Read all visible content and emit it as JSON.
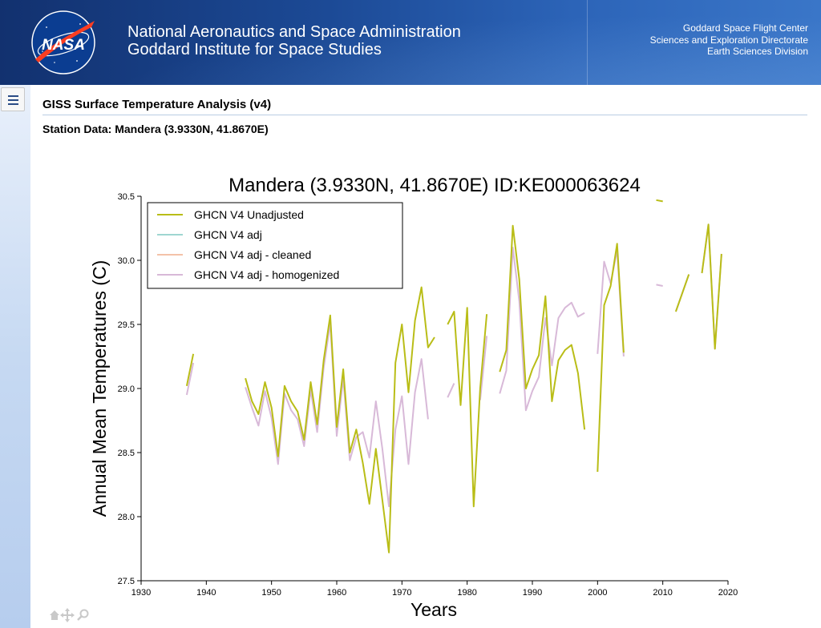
{
  "header": {
    "logo_text": "NASA",
    "agency_line1": "National Aeronautics and Space Administration",
    "agency_line2": "Goddard Institute for Space Studies",
    "right_line1": "Goddard Space Flight Center",
    "right_line2": "Sciences and Exploration Directorate",
    "right_line3": "Earth Sciences Division"
  },
  "page": {
    "title": "GISS Surface Temperature Analysis (v4)",
    "station_title": "Station Data: Mandera (3.9330N, 41.8670E)"
  },
  "colors": {
    "unadjusted": "#b9bd17",
    "adj": "#9fd6d1",
    "cleaned": "#f4c2a8",
    "homogenized": "#d8b9d8"
  },
  "chart_data": {
    "type": "line",
    "title": "Mandera (3.9330N, 41.8670E) ID:KE000063624",
    "xlabel": "Years",
    "ylabel": "Annual Mean Temperatures (C)",
    "xlim": [
      1930,
      2020
    ],
    "ylim": [
      27.5,
      30.5
    ],
    "xticks": [
      1930,
      1940,
      1950,
      1960,
      1970,
      1980,
      1990,
      2000,
      2010,
      2020
    ],
    "yticks": [
      27.5,
      28.0,
      28.5,
      29.0,
      29.5,
      30.0,
      30.5
    ],
    "ytick_labels": [
      "27.5",
      "28.0",
      "28.5",
      "29.0",
      "29.5",
      "30.0",
      "30.5"
    ],
    "legend_position": "top-left",
    "series": [
      {
        "name": "GHCN V4 Unadjusted",
        "color_key": "unadjusted",
        "segments": [
          [
            [
              1937,
              29.02
            ],
            [
              1938,
              29.27
            ]
          ],
          [
            [
              1946,
              29.08
            ],
            [
              1947,
              28.9
            ],
            [
              1948,
              28.8
            ],
            [
              1949,
              29.05
            ],
            [
              1950,
              28.85
            ],
            [
              1951,
              28.47
            ],
            [
              1952,
              29.02
            ],
            [
              1953,
              28.9
            ],
            [
              1954,
              28.82
            ],
            [
              1955,
              28.6
            ],
            [
              1956,
              29.05
            ],
            [
              1957,
              28.72
            ],
            [
              1958,
              29.22
            ],
            [
              1959,
              29.57
            ],
            [
              1960,
              28.7
            ],
            [
              1961,
              29.15
            ],
            [
              1962,
              28.5
            ],
            [
              1963,
              28.68
            ],
            [
              1964,
              28.42
            ],
            [
              1965,
              28.1
            ],
            [
              1966,
              28.53
            ],
            [
              1967,
              28.13
            ],
            [
              1968,
              27.72
            ],
            [
              1969,
              29.2
            ],
            [
              1970,
              29.5
            ],
            [
              1971,
              28.97
            ],
            [
              1972,
              29.53
            ],
            [
              1973,
              29.79
            ],
            [
              1974,
              29.32
            ],
            [
              1975,
              29.4
            ]
          ],
          [
            [
              1977,
              29.5
            ],
            [
              1978,
              29.6
            ],
            [
              1979,
              28.87
            ],
            [
              1980,
              29.63
            ],
            [
              1981,
              28.08
            ],
            [
              1982,
              29.0
            ],
            [
              1983,
              29.58
            ]
          ],
          [
            [
              1985,
              29.13
            ],
            [
              1986,
              29.3
            ],
            [
              1987,
              30.27
            ],
            [
              1988,
              29.85
            ],
            [
              1989,
              29.0
            ],
            [
              1990,
              29.15
            ],
            [
              1991,
              29.26
            ],
            [
              1992,
              29.72
            ],
            [
              1993,
              28.9
            ],
            [
              1994,
              29.22
            ],
            [
              1995,
              29.3
            ],
            [
              1996,
              29.34
            ],
            [
              1997,
              29.12
            ],
            [
              1998,
              28.68
            ]
          ],
          [
            [
              2000,
              28.35
            ],
            [
              2001,
              29.65
            ],
            [
              2002,
              29.8
            ],
            [
              2003,
              30.13
            ],
            [
              2004,
              29.28
            ]
          ],
          [
            [
              2009,
              30.47
            ],
            [
              2010,
              30.46
            ]
          ],
          [
            [
              2012,
              29.6
            ],
            [
              2014,
              29.89
            ]
          ],
          [
            [
              2016,
              29.9
            ],
            [
              2017,
              30.28
            ],
            [
              2018,
              29.31
            ],
            [
              2019,
              30.05
            ]
          ]
        ]
      },
      {
        "name": "GHCN V4 adj",
        "color_key": "adj",
        "segments": []
      },
      {
        "name": "GHCN V4 adj - cleaned",
        "color_key": "cleaned",
        "segments": []
      },
      {
        "name": "GHCN V4 adj - homogenized",
        "color_key": "homogenized",
        "segments": [
          [
            [
              1937,
              28.95
            ],
            [
              1938,
              29.2
            ]
          ],
          [
            [
              1946,
              29.01
            ],
            [
              1947,
              28.85
            ],
            [
              1948,
              28.71
            ],
            [
              1949,
              28.98
            ],
            [
              1950,
              28.77
            ],
            [
              1951,
              28.41
            ],
            [
              1952,
              28.96
            ],
            [
              1953,
              28.83
            ],
            [
              1954,
              28.76
            ],
            [
              1955,
              28.55
            ],
            [
              1956,
              28.99
            ],
            [
              1957,
              28.66
            ],
            [
              1958,
              29.16
            ],
            [
              1959,
              29.51
            ],
            [
              1960,
              28.63
            ],
            [
              1961,
              29.08
            ],
            [
              1962,
              28.44
            ],
            [
              1963,
              28.62
            ],
            [
              1964,
              28.66
            ],
            [
              1965,
              28.46
            ],
            [
              1966,
              28.9
            ],
            [
              1967,
              28.53
            ],
            [
              1968,
              28.08
            ],
            [
              1969,
              28.68
            ],
            [
              1970,
              28.94
            ],
            [
              1971,
              28.41
            ],
            [
              1972,
              28.97
            ],
            [
              1973,
              29.23
            ],
            [
              1974,
              28.76
            ]
          ],
          [
            [
              1977,
              28.93
            ],
            [
              1978,
              29.04
            ]
          ],
          [
            [
              1982,
              28.91
            ],
            [
              1983,
              29.41
            ]
          ],
          [
            [
              1985,
              28.96
            ],
            [
              1986,
              29.14
            ],
            [
              1987,
              30.1
            ],
            [
              1988,
              29.68
            ],
            [
              1989,
              28.83
            ],
            [
              1990,
              28.98
            ],
            [
              1991,
              29.09
            ],
            [
              1992,
              29.55
            ],
            [
              1993,
              29.18
            ],
            [
              1994,
              29.55
            ],
            [
              1995,
              29.63
            ],
            [
              1996,
              29.67
            ],
            [
              1997,
              29.56
            ],
            [
              1998,
              29.59
            ]
          ],
          [
            [
              2000,
              29.27
            ],
            [
              2001,
              29.99
            ],
            [
              2002,
              29.82
            ],
            [
              2003,
              30.08
            ],
            [
              2004,
              29.25
            ]
          ],
          [
            [
              2009,
              29.81
            ],
            [
              2010,
              29.8
            ]
          ],
          [
            [
              2012,
              29.6
            ],
            [
              2014,
              29.89
            ]
          ],
          [
            [
              2016,
              29.9
            ],
            [
              2017,
              30.28
            ],
            [
              2018,
              29.31
            ],
            [
              2019,
              30.05
            ]
          ]
        ]
      }
    ]
  }
}
